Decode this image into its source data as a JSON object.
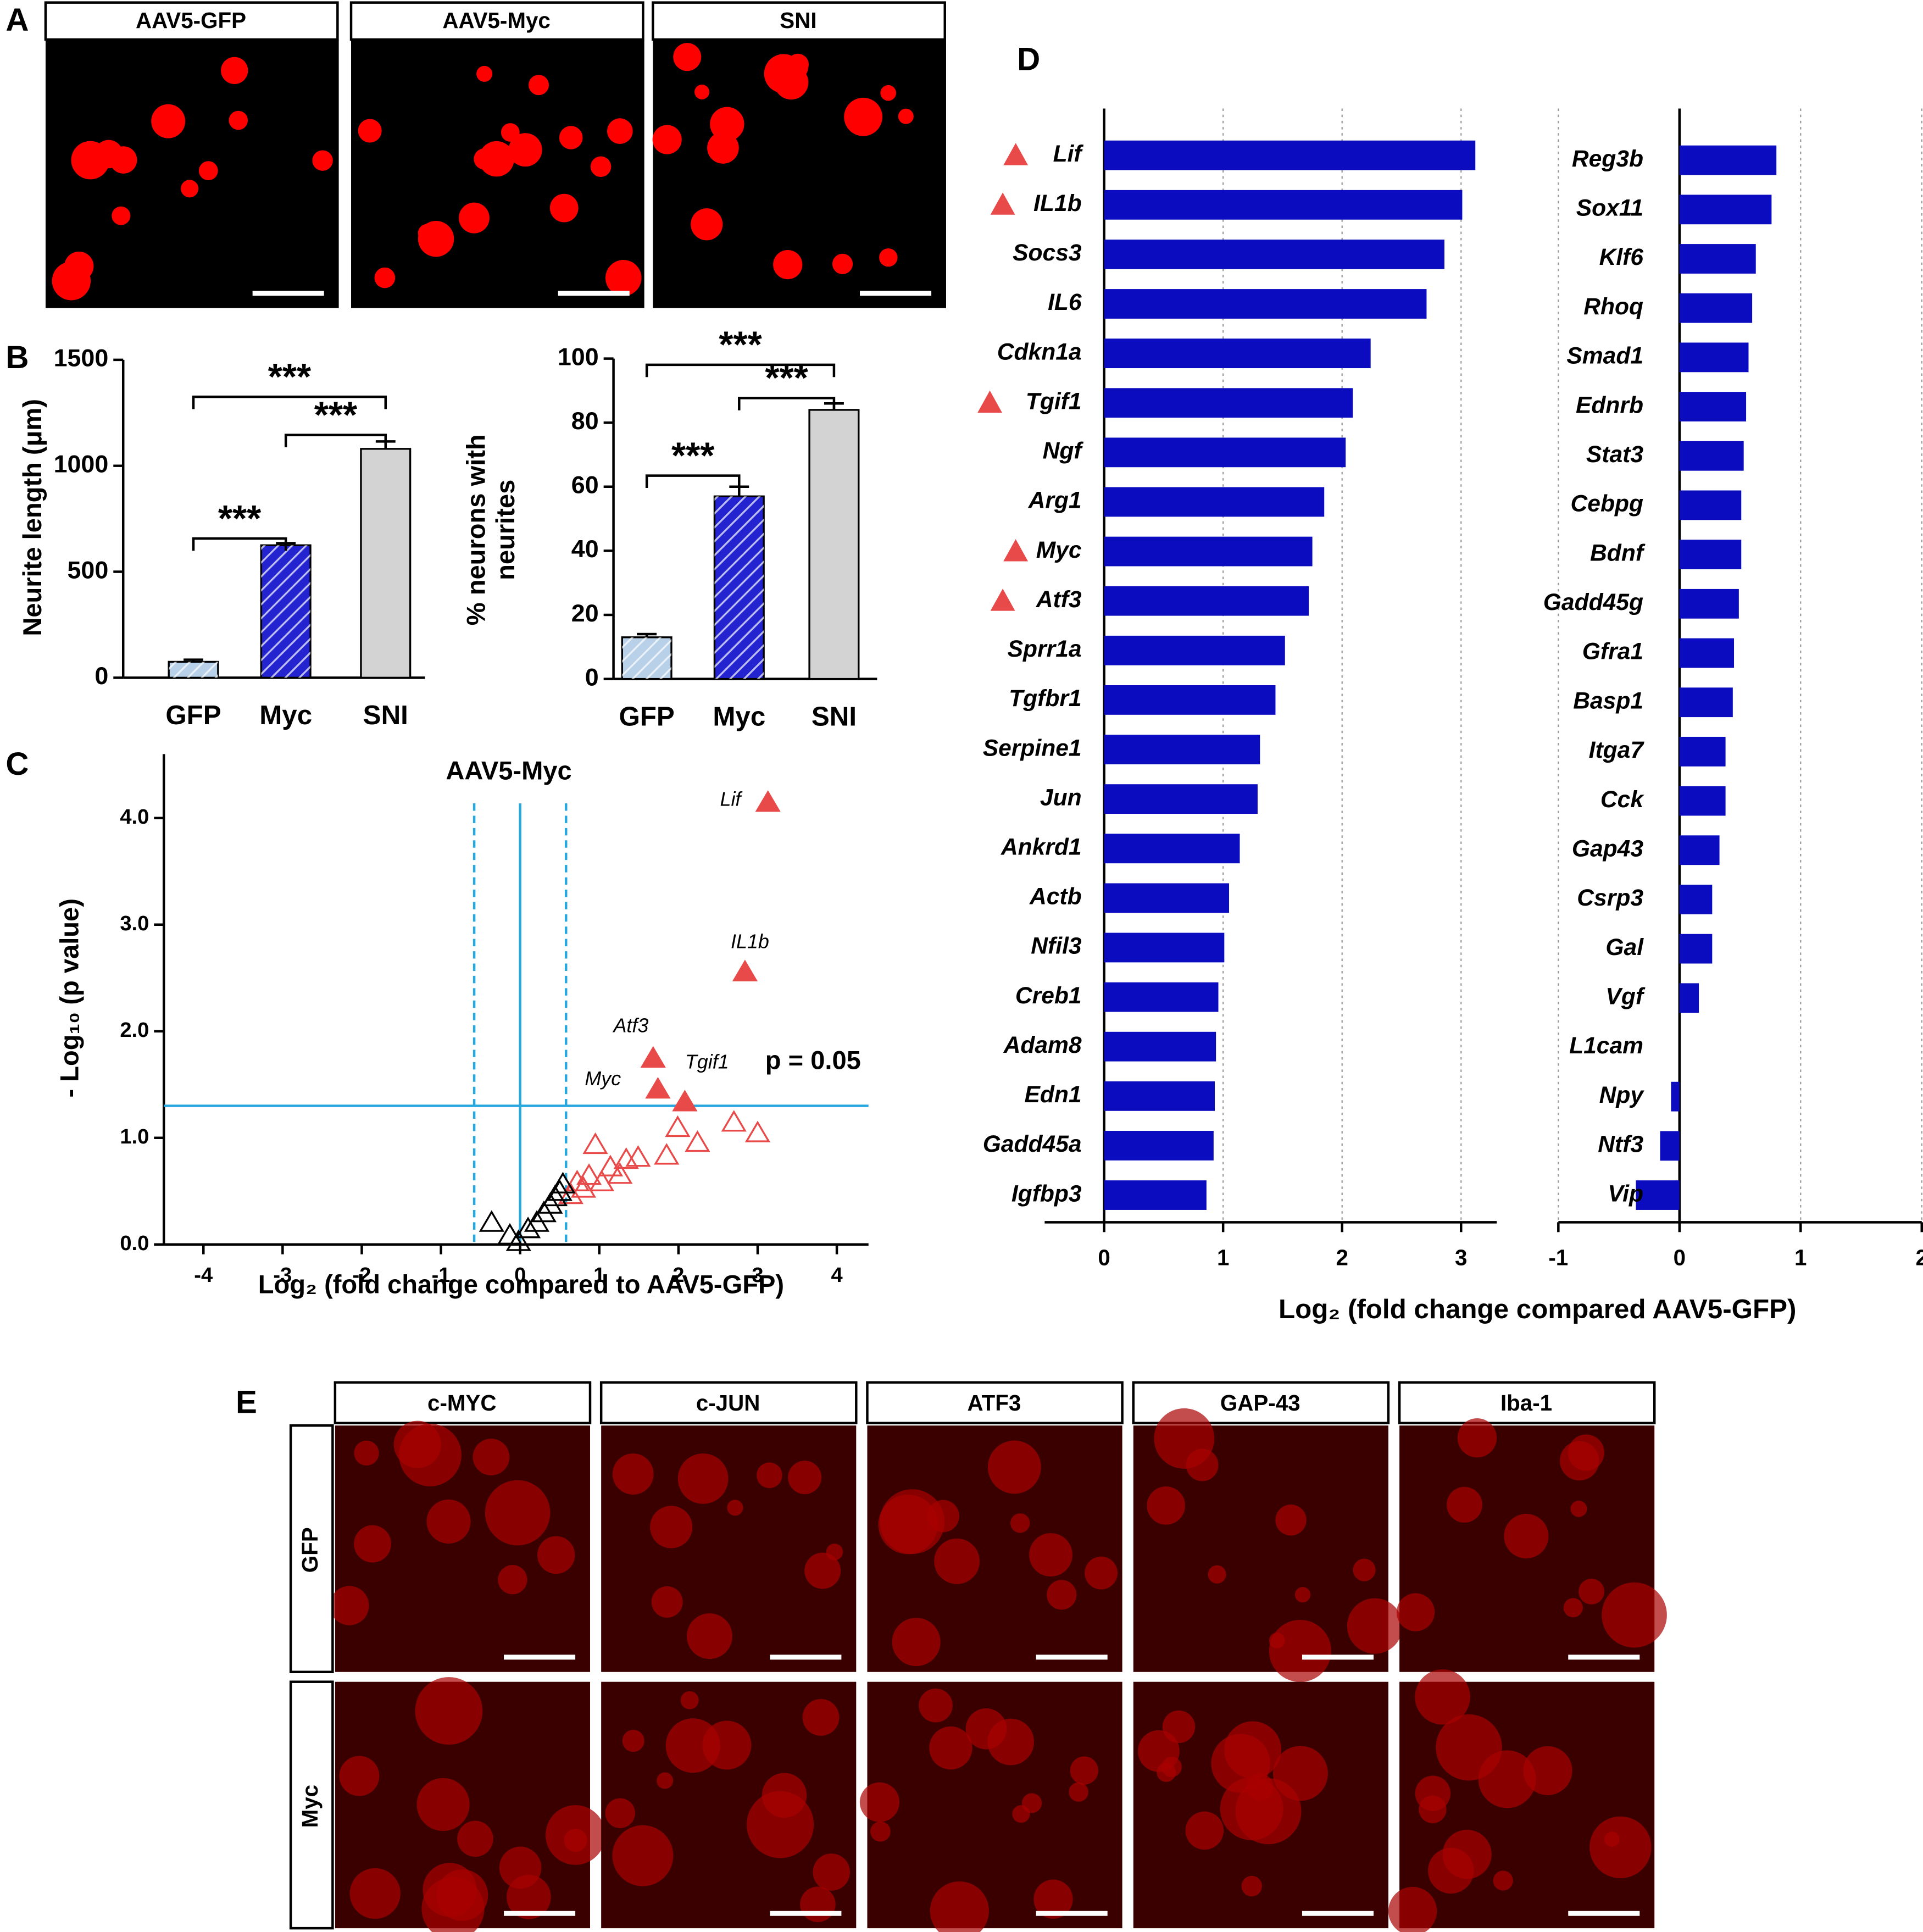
{
  "figure": {
    "panel_labels": [
      "A",
      "B",
      "C",
      "D",
      "E"
    ],
    "micrographs_A": {
      "labels": [
        "AAV5-GFP",
        "AAV5-Myc",
        "SNI"
      ]
    },
    "micrographs_E": {
      "columns": [
        "c-MYC",
        "c-JUN",
        "ATF3",
        "GAP-43",
        "Iba-1"
      ],
      "rows": [
        "GFP",
        "Myc"
      ]
    }
  },
  "chart_data": [
    {
      "type": "bar",
      "ylabel": [
        "Neurite length (μm)"
      ],
      "categories": [
        "GFP",
        "Myc",
        "SNI"
      ],
      "values": [
        75,
        625,
        1080
      ],
      "errors": [
        10,
        10,
        35
      ],
      "colors": [
        "#b8d0e8",
        "#2323d0",
        "#d3d3d3"
      ],
      "hatched": [
        true,
        true,
        false
      ],
      "ylim": [
        0,
        1500
      ],
      "yticks": [
        0,
        500,
        1000,
        1500
      ],
      "comparisons": [
        {
          "pair": [
            0,
            1
          ],
          "label": "***"
        },
        {
          "pair": [
            1,
            2
          ],
          "label": "***"
        },
        {
          "pair": [
            0,
            2
          ],
          "label": "***"
        }
      ]
    },
    {
      "type": "bar",
      "ylabel": [
        "% neurons with",
        "neurites"
      ],
      "categories": [
        "GFP",
        "Myc",
        "SNI"
      ],
      "values": [
        13,
        57,
        84
      ],
      "errors": [
        1,
        3,
        2
      ],
      "colors": [
        "#b8d0e8",
        "#2323d0",
        "#d3d3d3"
      ],
      "hatched": [
        true,
        true,
        false
      ],
      "ylim": [
        0,
        100
      ],
      "yticks": [
        0,
        20,
        40,
        60,
        80,
        100
      ],
      "comparisons": [
        {
          "pair": [
            0,
            1
          ],
          "label": "***"
        },
        {
          "pair": [
            1,
            2
          ],
          "label": "***"
        },
        {
          "pair": [
            0,
            2
          ],
          "label": "***"
        }
      ]
    },
    {
      "type": "scatter",
      "title": "AAV5-Myc",
      "xlabel": "Log₂ (fold change compared to AAV5-GFP)",
      "ylabel": "- Log₁₀ (p value)",
      "annotation": "p = 0.05",
      "threshold_y": 1.3,
      "threshold_x": [
        -0.58,
        0,
        0.58
      ],
      "threshold_color": "#29a8e0",
      "xlim": [
        -4.5,
        4.4
      ],
      "ylim": [
        0,
        4.6
      ],
      "xticks": [
        -4,
        -3,
        -2,
        -1,
        0,
        1,
        2,
        3,
        4
      ],
      "yticks": [
        {
          "value": 0,
          "label": "0.0"
        },
        {
          "value": 1,
          "label": "1.0"
        },
        {
          "value": 2,
          "label": "2.0"
        },
        {
          "value": 3,
          "label": "3.0"
        },
        {
          "value": 4,
          "label": "4.0"
        }
      ],
      "series": [
        {
          "color": "#e84a4a",
          "filled": true,
          "x": [
            3.13,
            2.84,
            1.68,
            1.74,
            2.08
          ],
          "values": [
            4.14,
            2.55,
            1.74,
            1.45,
            1.33
          ],
          "labels": [
            "Lif",
            "IL1b",
            "Atf3",
            "Myc",
            "Tgif1"
          ]
        },
        {
          "color": "#e84a4a",
          "filled": false,
          "x": [
            3.0,
            2.7,
            2.24,
            1.99,
            1.85,
            1.49,
            1.34,
            1.26,
            1.14,
            0.95,
            0.87,
            1.03,
            0.8,
            0.72,
            0.64
          ],
          "values": [
            1.04,
            1.14,
            0.95,
            1.09,
            0.83,
            0.81,
            0.79,
            0.65,
            0.72,
            0.93,
            0.64,
            0.58,
            0.52,
            0.58,
            0.46
          ]
        },
        {
          "color": "#000000",
          "filled": false,
          "x": [
            -0.36,
            -0.13,
            -0.02,
            0.1,
            0.21,
            0.3,
            0.38,
            0.44,
            0.5,
            0.54
          ],
          "values": [
            0.2,
            0.08,
            0.02,
            0.14,
            0.2,
            0.29,
            0.37,
            0.44,
            0.49,
            0.56
          ]
        }
      ]
    },
    {
      "type": "barh",
      "xlabel": "Log₂ (fold change compared AAV5-GFP)",
      "color": "#0b0bbf",
      "marker_color": "#e84a4a",
      "grid": true,
      "panels": [
        {
          "categories": [
            "Lif",
            "IL1b",
            "Socs3",
            "IL6",
            "Cdkn1a",
            "Tgif1",
            "Ngf",
            "Arg1",
            "Myc",
            "Atf3",
            "Sprr1a",
            "Tgfbr1",
            "Serpine1",
            "Jun",
            "Ankrd1",
            "Actb",
            "Nfil3",
            "Creb1",
            "Adam8",
            "Edn1",
            "Gadd45a",
            "Igfbp3"
          ],
          "values": [
            3.12,
            3.01,
            2.86,
            2.71,
            2.24,
            2.09,
            2.03,
            1.85,
            1.75,
            1.72,
            1.52,
            1.44,
            1.31,
            1.29,
            1.14,
            1.05,
            1.01,
            0.96,
            0.94,
            0.93,
            0.92,
            0.86
          ],
          "marked": [
            true,
            true,
            false,
            false,
            false,
            true,
            false,
            false,
            true,
            true,
            false,
            false,
            false,
            false,
            false,
            false,
            false,
            false,
            false,
            false,
            false,
            false
          ],
          "xlim": [
            -0.5,
            3.3
          ],
          "xticks": [
            0,
            1,
            2,
            3
          ]
        },
        {
          "categories": [
            "Reg3b",
            "Sox11",
            "Klf6",
            "Rhoq",
            "Smad1",
            "Ednrb",
            "Stat3",
            "Cebpg",
            "Bdnf",
            "Gadd45g",
            "Gfra1",
            "Basp1",
            "Itga7",
            "Cck",
            "Gap43",
            "Csrp3",
            "Gal",
            "Vgf",
            "L1cam",
            "Npy",
            "Ntf3",
            "Vip"
          ],
          "values": [
            0.8,
            0.76,
            0.63,
            0.6,
            0.57,
            0.55,
            0.53,
            0.51,
            0.51,
            0.49,
            0.45,
            0.44,
            0.38,
            0.38,
            0.33,
            0.27,
            0.27,
            0.16,
            0,
            -0.07,
            -0.16,
            -0.36
          ],
          "marked": [
            false,
            false,
            false,
            false,
            false,
            false,
            false,
            false,
            false,
            false,
            false,
            false,
            false,
            false,
            false,
            false,
            false,
            false,
            false,
            false,
            false,
            false
          ],
          "xlim": [
            -1,
            2
          ],
          "xticks": [
            -1,
            0,
            1,
            2
          ]
        }
      ]
    }
  ]
}
